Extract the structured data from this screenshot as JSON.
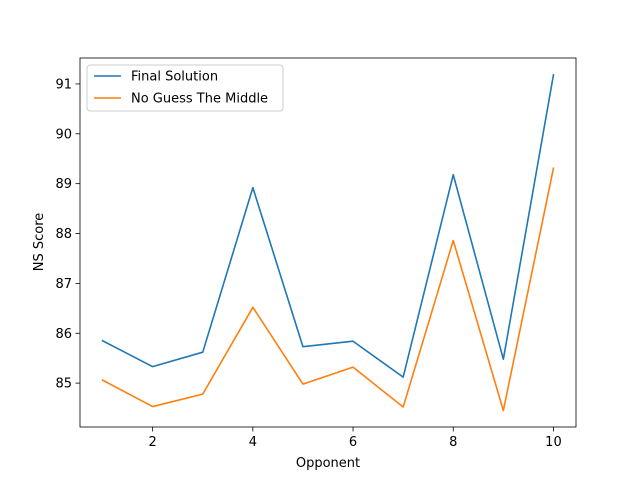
{
  "chart_data": {
    "type": "line",
    "title": "",
    "xlabel": "Opponent",
    "ylabel": "NS Score",
    "x": [
      1,
      2,
      3,
      4,
      5,
      6,
      7,
      8,
      9,
      10
    ],
    "xticks": [
      2,
      4,
      6,
      8,
      10
    ],
    "yticks": [
      85,
      86,
      87,
      88,
      89,
      90,
      91
    ],
    "xlim": [
      0.55,
      10.45
    ],
    "ylim": [
      84.12,
      91.52
    ],
    "grid": false,
    "legend_position": "upper-left",
    "series": [
      {
        "name": "Final Solution",
        "color": "#1f77b4",
        "values": [
          85.85,
          85.33,
          85.62,
          88.92,
          85.73,
          85.84,
          85.12,
          89.18,
          85.48,
          91.18
        ]
      },
      {
        "name": "No Guess The Middle",
        "color": "#ff7f0e",
        "values": [
          85.06,
          84.53,
          84.78,
          86.52,
          84.98,
          85.32,
          84.52,
          87.86,
          84.45,
          89.31
        ]
      }
    ]
  }
}
